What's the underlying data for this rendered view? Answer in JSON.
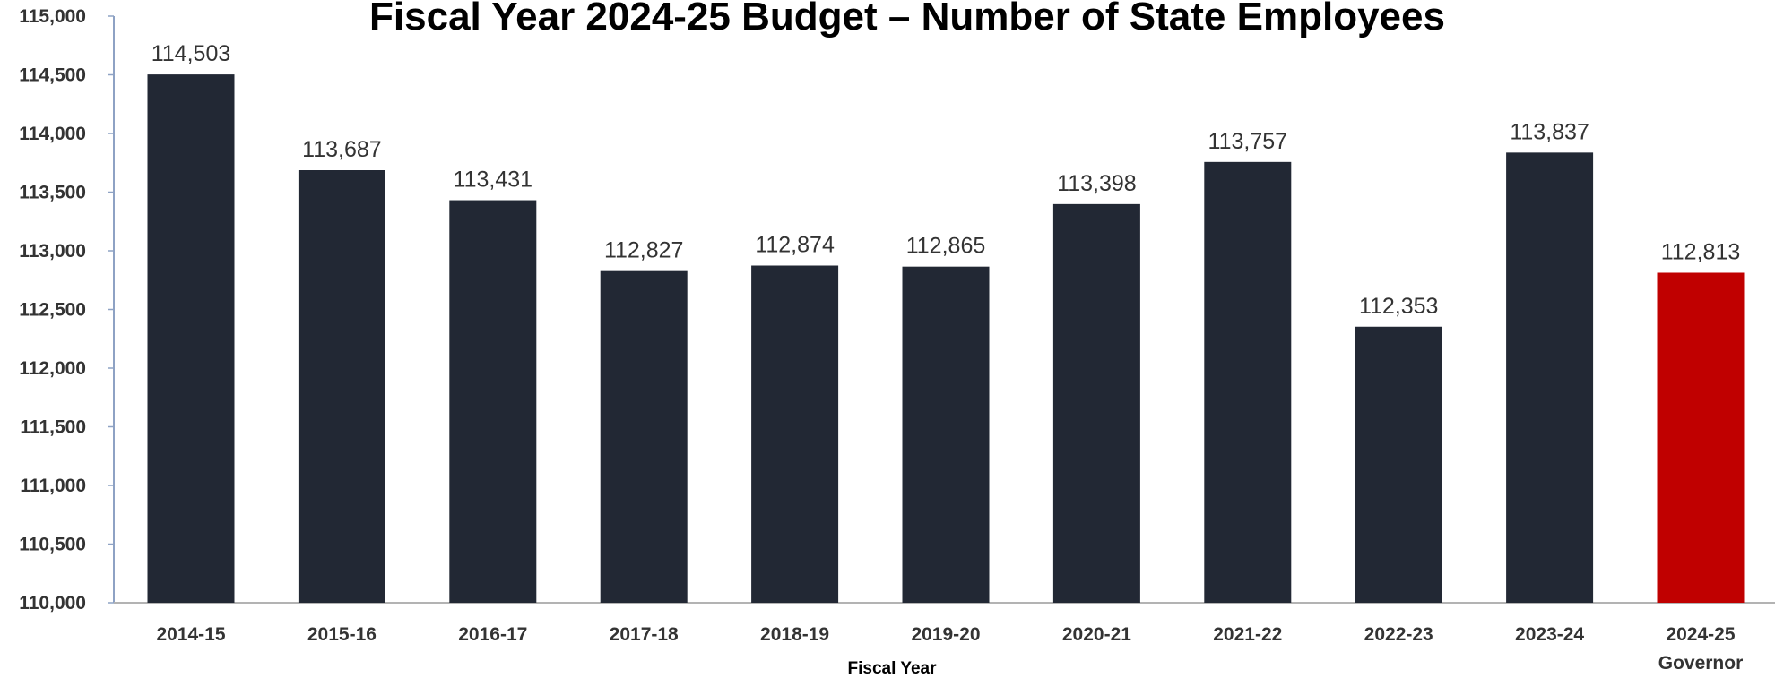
{
  "chart_data": {
    "type": "bar",
    "title": "Fiscal Year 2024-25 Budget – Number of State Employees",
    "xlabel": "Fiscal Year",
    "ylabel": "",
    "categories": [
      "2014-15",
      "2015-16",
      "2016-17",
      "2017-18",
      "2018-19",
      "2019-20",
      "2020-21",
      "2021-22",
      "2022-23",
      "2023-24",
      "2024-25"
    ],
    "category_sublabels": [
      "",
      "",
      "",
      "",
      "",
      "",
      "",
      "",
      "",
      "",
      "Governor"
    ],
    "values": [
      114503,
      113687,
      113431,
      112827,
      112874,
      112865,
      113398,
      113757,
      112353,
      113837,
      112813
    ],
    "data_labels": [
      "114,503",
      "113,687",
      "113,431",
      "112,827",
      "112,874",
      "112,865",
      "113,398",
      "113,757",
      "112,353",
      "113,837",
      "112,813"
    ],
    "bar_colors": [
      "#222834",
      "#222834",
      "#222834",
      "#222834",
      "#222834",
      "#222834",
      "#222834",
      "#222834",
      "#222834",
      "#222834",
      "#C00000"
    ],
    "ylim": [
      110000,
      115000
    ],
    "yticks": [
      110000,
      110500,
      111000,
      111500,
      112000,
      112500,
      113000,
      113500,
      114000,
      114500,
      115000
    ],
    "ytick_labels": [
      "110,000",
      "110,500",
      "111,000",
      "111,500",
      "112,000",
      "112,500",
      "113,000",
      "113,500",
      "114,000",
      "114,500",
      "115,000"
    ],
    "grid": false,
    "legend": "none"
  }
}
